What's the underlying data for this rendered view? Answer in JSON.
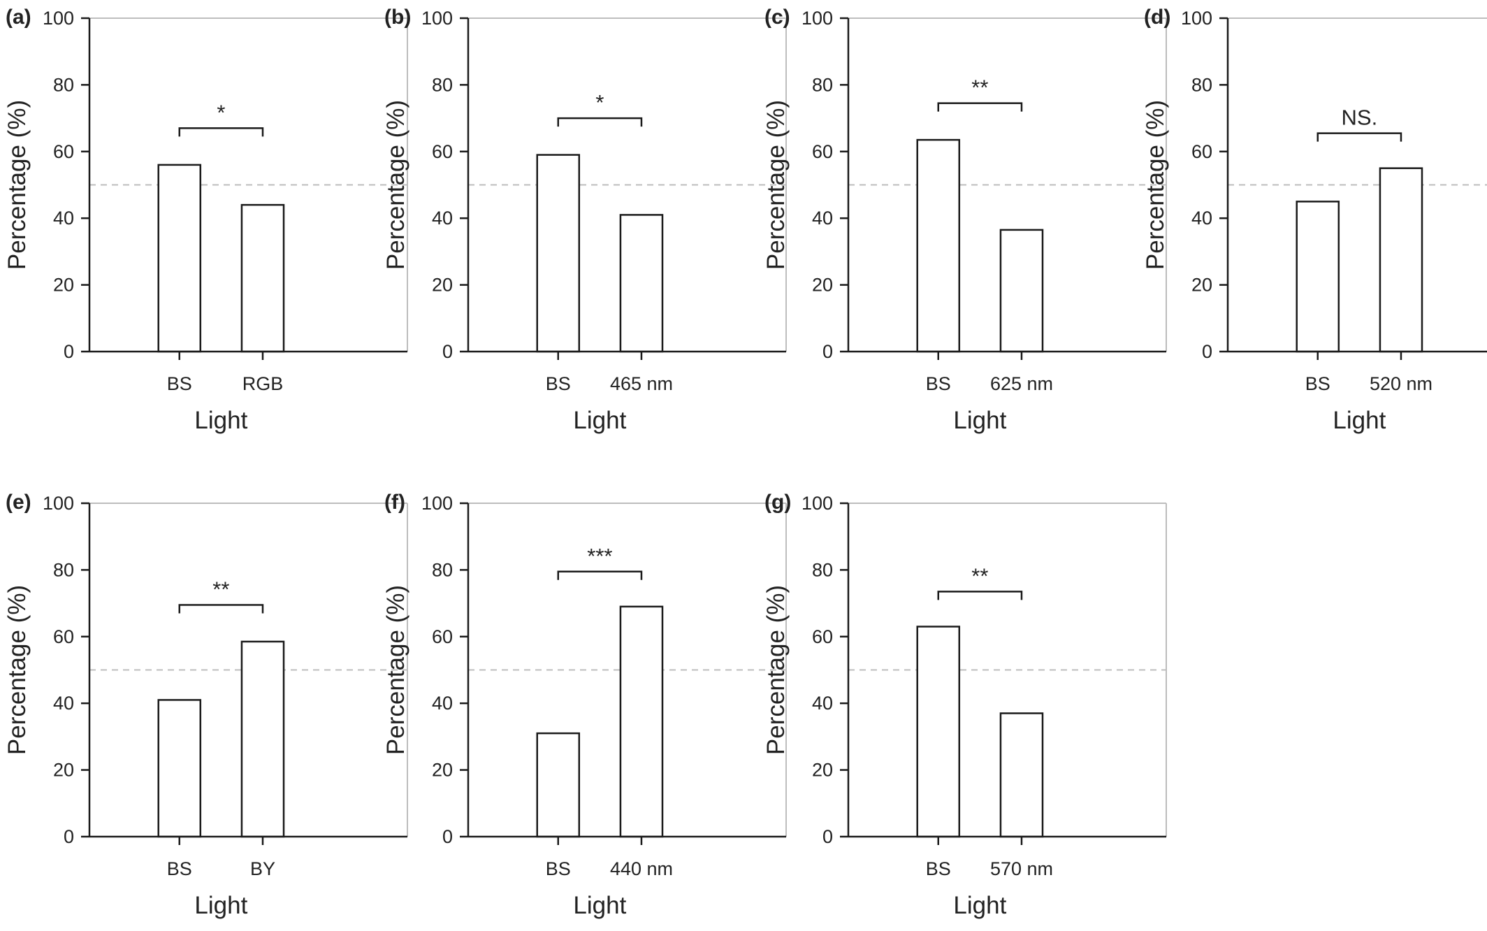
{
  "style": {
    "bar_fill": "#ffffff",
    "bar_stroke": "#1a1a1a",
    "axis_color": "#1a1a1a",
    "frame_color": "#bdbdbd",
    "reference_line_color": "#bdbdbd",
    "text_color": "#222222"
  },
  "chart_data": [
    {
      "panel": "(a)",
      "type": "bar",
      "categories": [
        "BS",
        "RGB"
      ],
      "values": [
        56,
        44
      ],
      "xlabel": "Light",
      "ylabel": "Percentage (%)",
      "ylim": [
        0,
        100
      ],
      "yticks": [
        "0",
        "20",
        "40",
        "60",
        "80",
        "100"
      ],
      "reference_line": 50,
      "significance": "*",
      "significance_bracket_level": 67
    },
    {
      "panel": "(b)",
      "type": "bar",
      "categories": [
        "BS",
        "465 nm"
      ],
      "values": [
        59,
        41
      ],
      "xlabel": "Light",
      "ylabel": "Percentage (%)",
      "ylim": [
        0,
        100
      ],
      "yticks": [
        "0",
        "20",
        "40",
        "60",
        "80",
        "100"
      ],
      "reference_line": 50,
      "significance": "*",
      "significance_bracket_level": 70
    },
    {
      "panel": "(c)",
      "type": "bar",
      "categories": [
        "BS",
        "625 nm"
      ],
      "values": [
        63.5,
        36.5
      ],
      "xlabel": "Light",
      "ylabel": "Percentage (%)",
      "ylim": [
        0,
        100
      ],
      "yticks": [
        "0",
        "20",
        "40",
        "60",
        "80",
        "100"
      ],
      "reference_line": 50,
      "significance": "**",
      "significance_bracket_level": 74.5
    },
    {
      "panel": "(d)",
      "type": "bar",
      "categories": [
        "BS",
        "520 nm"
      ],
      "values": [
        45,
        55
      ],
      "xlabel": "Light",
      "ylabel": "Percentage (%)",
      "ylim": [
        0,
        100
      ],
      "yticks": [
        "0",
        "20",
        "40",
        "60",
        "80",
        "100"
      ],
      "reference_line": 50,
      "significance": "NS.",
      "significance_bracket_level": 65.5
    },
    {
      "panel": "(e)",
      "type": "bar",
      "categories": [
        "BS",
        "BY"
      ],
      "values": [
        41,
        58.5
      ],
      "xlabel": "Light",
      "ylabel": "Percentage (%)",
      "ylim": [
        0,
        100
      ],
      "yticks": [
        "0",
        "20",
        "40",
        "60",
        "80",
        "100"
      ],
      "reference_line": 50,
      "significance": "**",
      "significance_bracket_level": 69.5
    },
    {
      "panel": "(f)",
      "type": "bar",
      "categories": [
        "BS",
        "440 nm"
      ],
      "values": [
        31,
        69
      ],
      "xlabel": "Light",
      "ylabel": "Percentage (%)",
      "ylim": [
        0,
        100
      ],
      "yticks": [
        "0",
        "20",
        "40",
        "60",
        "80",
        "100"
      ],
      "reference_line": 50,
      "significance": "***",
      "significance_bracket_level": 79.5
    },
    {
      "panel": "(g)",
      "type": "bar",
      "categories": [
        "BS",
        "570 nm"
      ],
      "values": [
        63,
        37
      ],
      "xlabel": "Light",
      "ylabel": "Percentage (%)",
      "ylim": [
        0,
        100
      ],
      "yticks": [
        "0",
        "20",
        "40",
        "60",
        "80",
        "100"
      ],
      "reference_line": 50,
      "significance": "**",
      "significance_bracket_level": 73.5
    }
  ]
}
